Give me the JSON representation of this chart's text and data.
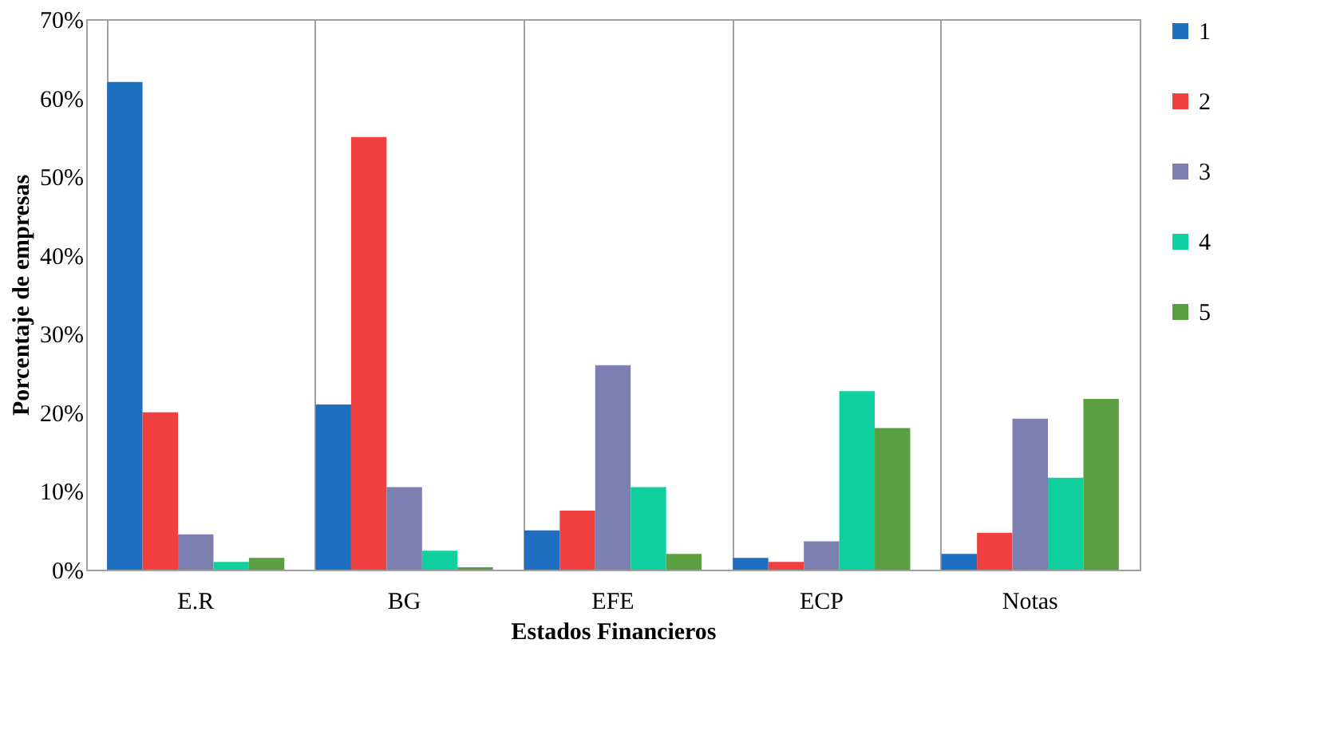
{
  "chart_data": {
    "type": "bar",
    "xlabel": "Estados Financieros",
    "ylabel": "Porcentaje de empresas",
    "categories": [
      "E.R",
      "BG",
      "EFE",
      "ECP",
      "Notas"
    ],
    "series": [
      {
        "name": "1",
        "color": "#1f6fc0",
        "values": [
          62,
          21,
          5,
          1.5,
          2
        ]
      },
      {
        "name": "2",
        "color": "#f04040",
        "values": [
          20,
          55,
          7.5,
          1,
          4.7
        ]
      },
      {
        "name": "3",
        "color": "#7b80b0",
        "values": [
          4.5,
          10.5,
          26,
          3.6,
          19.2
        ]
      },
      {
        "name": "4",
        "color": "#10d0a0",
        "values": [
          1,
          2.4,
          10.5,
          22.7,
          11.7
        ]
      },
      {
        "name": "5",
        "color": "#5aa040",
        "values": [
          1.5,
          0.3,
          2,
          18,
          21.7
        ]
      }
    ],
    "ylim": [
      0,
      70
    ],
    "yticks": [
      {
        "value": 0,
        "label": "0%"
      },
      {
        "value": 10,
        "label": "10%"
      },
      {
        "value": 20,
        "label": "20%"
      },
      {
        "value": 30,
        "label": "30%"
      },
      {
        "value": 40,
        "label": "40%"
      },
      {
        "value": 50,
        "label": "50%"
      },
      {
        "value": 60,
        "label": "60%"
      },
      {
        "value": 70,
        "label": "70%"
      }
    ],
    "grid": "x",
    "legend": "right"
  }
}
